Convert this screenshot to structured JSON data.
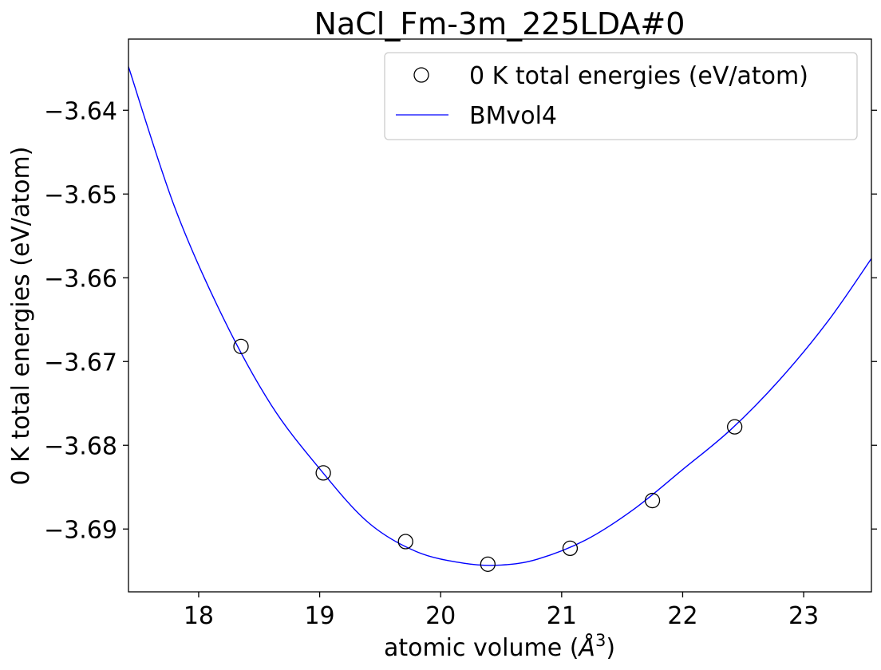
{
  "chart_data": {
    "type": "scatter",
    "title": "NaCl_Fm-3m_225LDA#0",
    "xlabel_prefix": "atomic volume (",
    "xlabel_unit": "Å",
    "xlabel_exp": "3",
    "xlabel_suffix": ")",
    "ylabel": "0 K total energies (eV/atom)",
    "xlim": [
      17.42,
      23.56
    ],
    "ylim": [
      -3.6975,
      -3.6315
    ],
    "xticks": [
      18,
      19,
      20,
      21,
      22,
      23
    ],
    "yticks": [
      -3.64,
      -3.65,
      -3.66,
      -3.67,
      -3.68,
      -3.69
    ],
    "xtick_labels": [
      "18",
      "19",
      "20",
      "21",
      "22",
      "23"
    ],
    "ytick_labels": [
      "−3.64",
      "−3.65",
      "−3.66",
      "−3.67",
      "−3.68",
      "−3.69"
    ],
    "legend_position": "top-right",
    "series": [
      {
        "name": "0 K total energies (eV/atom)",
        "kind": "points",
        "color": "#000000",
        "x": [
          18.35,
          19.03,
          19.71,
          20.39,
          21.07,
          21.75,
          22.43
        ],
        "y": [
          -3.6682,
          -3.6833,
          -3.6915,
          -3.6942,
          -3.6923,
          -3.6866,
          -3.6778
        ]
      },
      {
        "name": "BMvol4",
        "kind": "line",
        "color": "#0000ff",
        "x": [
          17.42,
          17.8,
          18.2,
          18.6,
          19.0,
          19.4,
          19.8,
          20.2,
          20.5,
          20.8,
          21.2,
          21.6,
          22.0,
          22.4,
          22.8,
          23.2,
          23.56
        ],
        "y": [
          -3.6348,
          -3.6515,
          -3.6647,
          -3.6752,
          -3.6828,
          -3.6892,
          -3.6927,
          -3.6941,
          -3.6943,
          -3.6936,
          -3.6913,
          -3.6876,
          -3.6829,
          -3.6781,
          -3.6722,
          -3.6652,
          -3.6577
        ]
      }
    ]
  }
}
